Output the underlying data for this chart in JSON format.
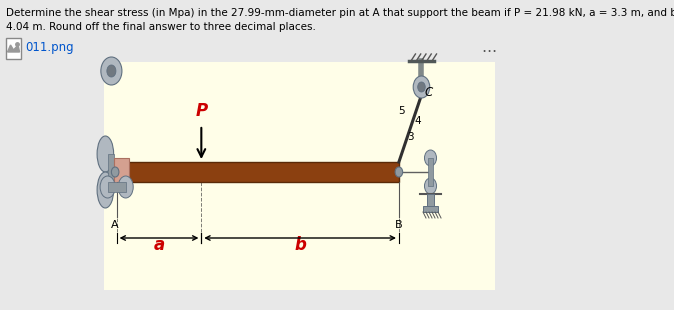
{
  "title_line1": "Determine the shear stress (in Mpa) in the 27.99-mm-diameter pin at A that support the beam if P = 21.98 kN, a = 3.3 m, and b =",
  "title_line2": "4.04 m. Round off the final answer to three decimal places.",
  "filename_label": "011.png",
  "bg_color": "#e8e8e8",
  "diagram_bg": "#fffee8",
  "beam_color": "#8B4010",
  "beam_edge_color": "#5a2a08",
  "label_P": "P",
  "label_a": "a",
  "label_b": "b",
  "label_A": "A",
  "label_B": "B",
  "label_C": "C",
  "label_color_red": "#cc0000",
  "label_5": "5",
  "label_4": "4",
  "label_3": "3",
  "gray_support": "#b0b8c0",
  "dark_gray": "#607080",
  "pink_bracket": "#d4a090"
}
